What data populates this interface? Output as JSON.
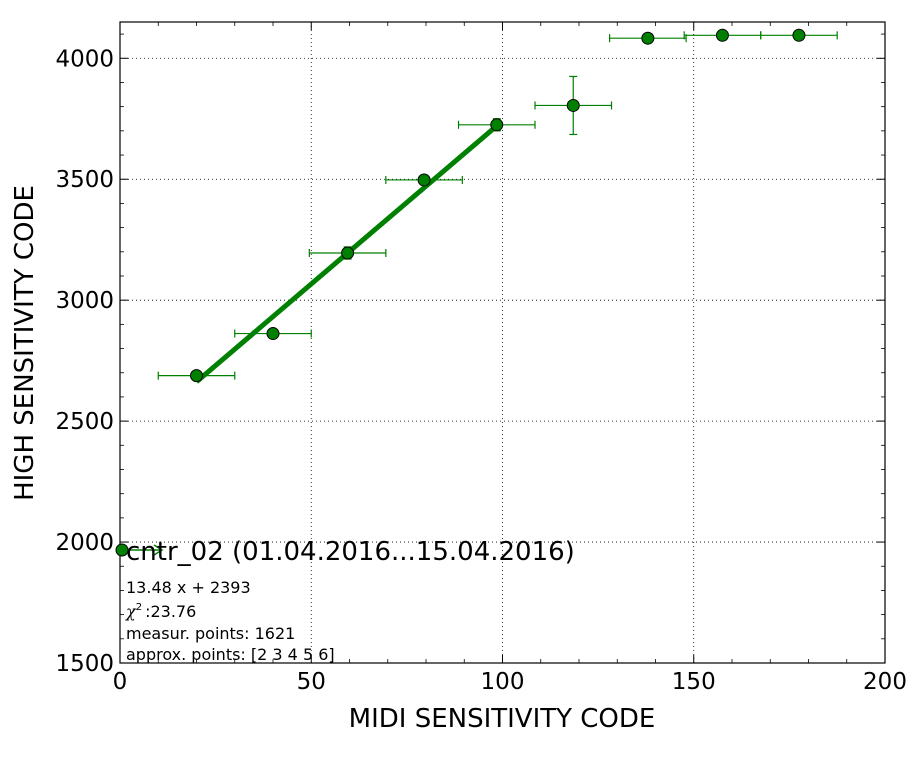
{
  "chart_data": {
    "type": "scatter",
    "xlabel": "MIDI SENSITIVITY CODE",
    "ylabel": "HIGH SENSITIVITY CODE",
    "xlim": [
      0,
      200
    ],
    "ylim": [
      1500,
      4150
    ],
    "x_ticks": [
      "0",
      "50",
      "100",
      "150",
      "200"
    ],
    "y_ticks": [
      "1500",
      "2000",
      "2500",
      "3000",
      "3500",
      "4000"
    ],
    "grid": true,
    "legend_position": "lower-left",
    "series": [
      {
        "name": "cntr_02 (01.04.2016...15.04.2016)",
        "kind": "errorbar",
        "color": "#008000",
        "points": [
          {
            "x": 20,
            "y": 2688,
            "xerr": 10,
            "yerr": 10
          },
          {
            "x": 40,
            "y": 2862,
            "xerr": 10,
            "yerr": 10
          },
          {
            "x": 59.5,
            "y": 3195,
            "xerr": 10,
            "yerr": 25
          },
          {
            "x": 79.5,
            "y": 3497,
            "xerr": 10,
            "yerr": 20
          },
          {
            "x": 98.5,
            "y": 3725,
            "xerr": 10,
            "yerr": 25
          },
          {
            "x": 118.5,
            "y": 3805,
            "xerr": 10,
            "yerr": 120
          },
          {
            "x": 138,
            "y": 4083,
            "xerr": 10,
            "yerr": 8
          },
          {
            "x": 157.5,
            "y": 4095,
            "xerr": 10,
            "yerr": 8
          },
          {
            "x": 177.5,
            "y": 4095,
            "xerr": 10,
            "yerr": 8
          }
        ]
      },
      {
        "kind": "fit-line",
        "color": "#008000",
        "x": [
          20,
          98.5
        ],
        "y": [
          2662.6,
          3720.8
        ]
      }
    ],
    "info_lines": [
      "13.48 x + 2393",
      ":23.76",
      "measur. points: 1621",
      "approx. points: [2 3 4 5 6]"
    ],
    "chi_symbol": "χ",
    "chi_sup": "2"
  }
}
